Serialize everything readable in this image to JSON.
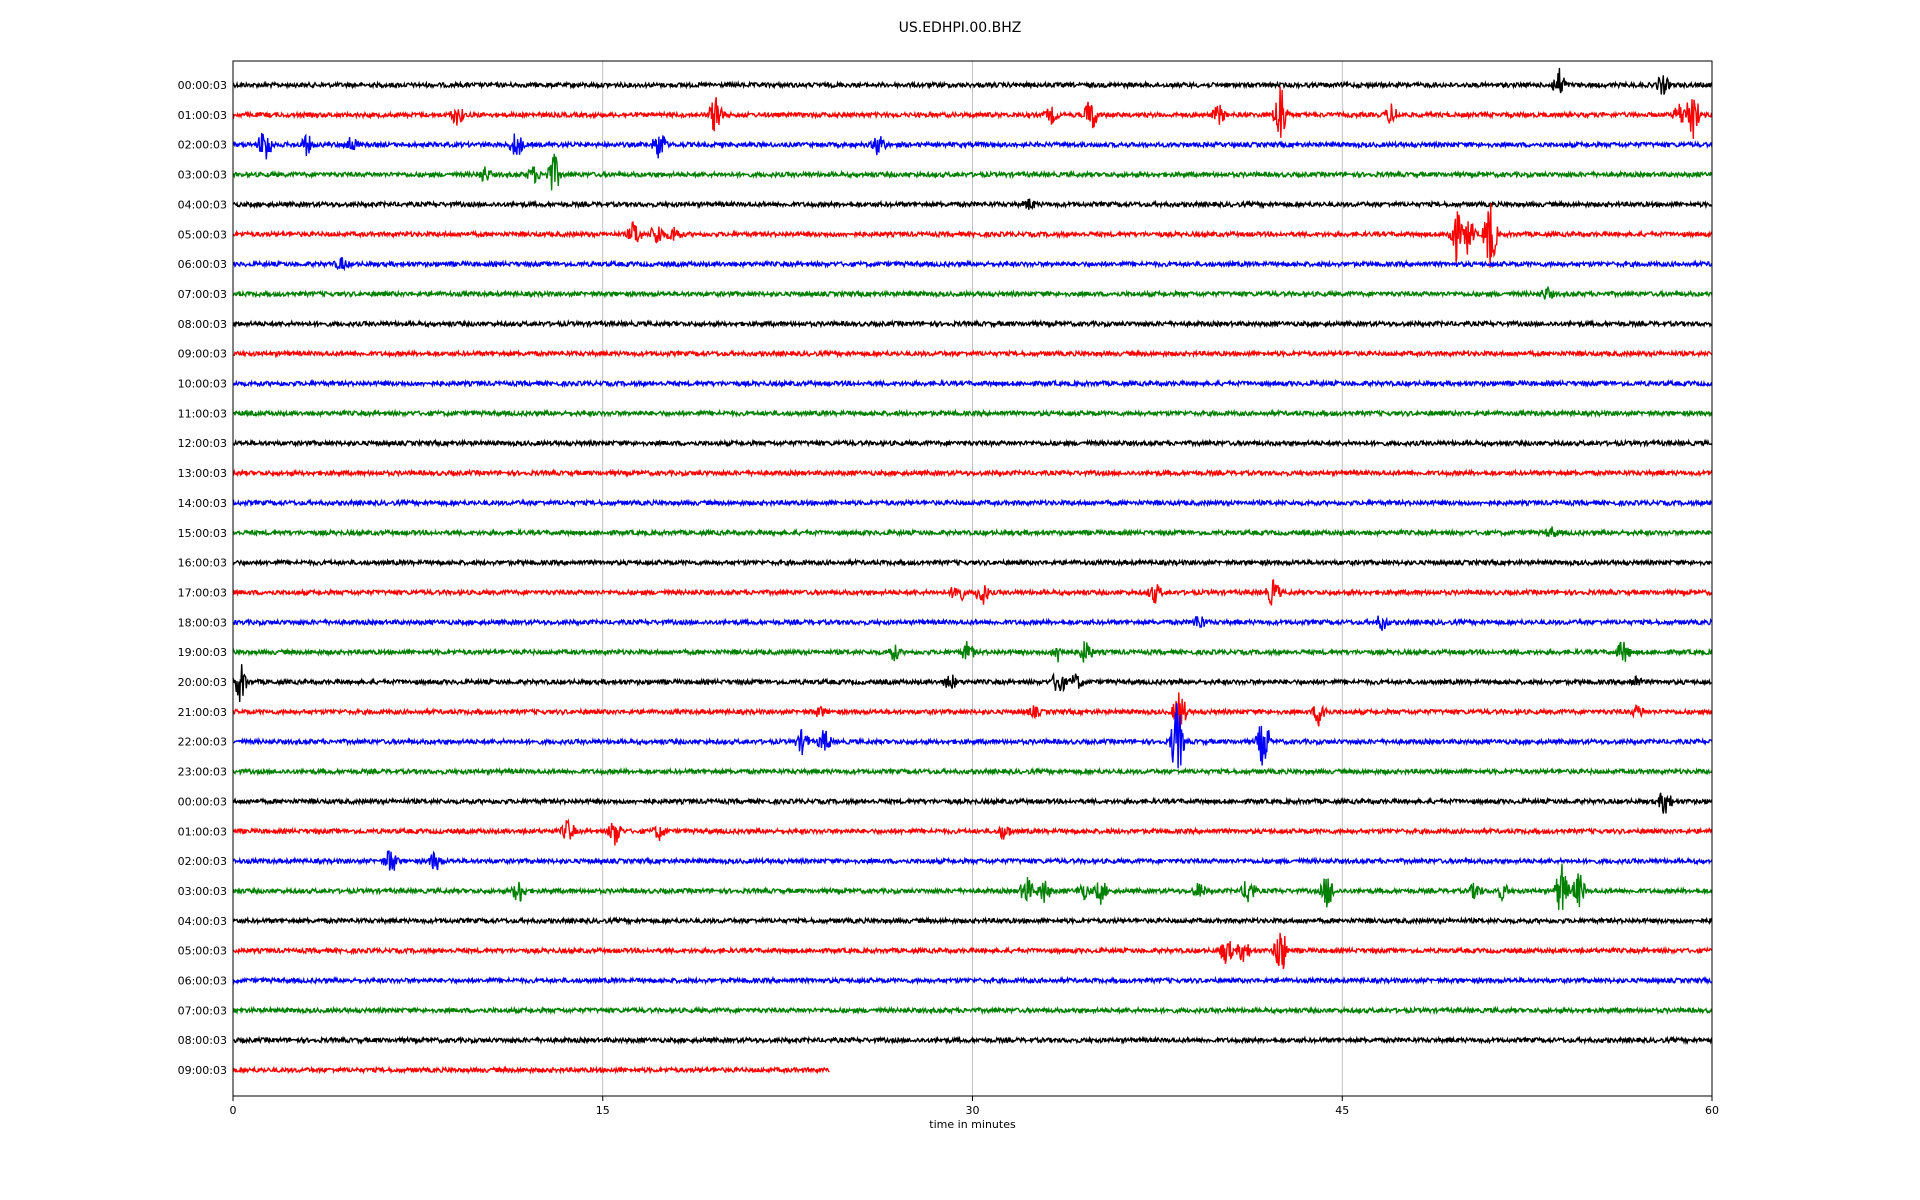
{
  "chart_data": {
    "type": "line",
    "title": "US.EDHPI.00.BHZ",
    "xlabel": "time in minutes",
    "ylabel": "",
    "xlim": [
      0,
      60
    ],
    "xticks": [
      0,
      15,
      30,
      45,
      60
    ],
    "grid": "vertical lines at x ticks",
    "color_cycle": [
      "#000000",
      "#ff0000",
      "#0000ff",
      "#008000"
    ],
    "series": [
      {
        "label": "00:00:03",
        "end_minute": 60,
        "events": [
          [
            53.8,
            16
          ],
          [
            58,
            10
          ]
        ]
      },
      {
        "label": "01:00:03",
        "end_minute": 60,
        "events": [
          [
            9.1,
            10
          ],
          [
            19.6,
            22
          ],
          [
            33.2,
            8
          ],
          [
            34.8,
            18
          ],
          [
            40,
            10
          ],
          [
            42.5,
            36
          ],
          [
            47,
            10
          ],
          [
            58.7,
            12
          ],
          [
            59.2,
            30
          ]
        ]
      },
      {
        "label": "02:00:03",
        "end_minute": 60,
        "events": [
          [
            1.3,
            20
          ],
          [
            3,
            10
          ],
          [
            4.8,
            8
          ],
          [
            11.5,
            14
          ],
          [
            17.3,
            16
          ],
          [
            26.2,
            12
          ]
        ]
      },
      {
        "label": "03:00:03",
        "end_minute": 60,
        "events": [
          [
            10.2,
            8
          ],
          [
            12.2,
            8
          ],
          [
            13,
            22
          ]
        ]
      },
      {
        "label": "04:00:03",
        "end_minute": 60,
        "events": [
          [
            32.3,
            5
          ]
        ]
      },
      {
        "label": "05:00:03",
        "end_minute": 60,
        "events": [
          [
            16.3,
            14
          ],
          [
            17.2,
            12
          ],
          [
            17.9,
            8
          ],
          [
            49.6,
            28
          ],
          [
            50.1,
            20
          ],
          [
            51,
            38
          ]
        ]
      },
      {
        "label": "06:00:03",
        "end_minute": 60,
        "events": [
          [
            4.4,
            6
          ]
        ]
      },
      {
        "label": "07:00:03",
        "end_minute": 60,
        "events": [
          [
            53.3,
            6
          ]
        ]
      },
      {
        "label": "08:00:03",
        "end_minute": 60,
        "events": []
      },
      {
        "label": "09:00:03",
        "end_minute": 60,
        "events": []
      },
      {
        "label": "10:00:03",
        "end_minute": 60,
        "events": []
      },
      {
        "label": "11:00:03",
        "end_minute": 60,
        "events": []
      },
      {
        "label": "12:00:03",
        "end_minute": 60,
        "events": []
      },
      {
        "label": "13:00:03",
        "end_minute": 60,
        "events": []
      },
      {
        "label": "14:00:03",
        "end_minute": 60,
        "events": []
      },
      {
        "label": "15:00:03",
        "end_minute": 60,
        "events": [
          [
            53.5,
            5
          ]
        ]
      },
      {
        "label": "16:00:03",
        "end_minute": 60,
        "events": []
      },
      {
        "label": "17:00:03",
        "end_minute": 60,
        "events": [
          [
            29.4,
            12
          ],
          [
            30.4,
            12
          ],
          [
            37.4,
            10
          ],
          [
            42.2,
            14
          ]
        ]
      },
      {
        "label": "18:00:03",
        "end_minute": 60,
        "events": [
          [
            39.2,
            8
          ],
          [
            46.6,
            8
          ]
        ]
      },
      {
        "label": "19:00:03",
        "end_minute": 60,
        "events": [
          [
            26.8,
            8
          ],
          [
            29.8,
            10
          ],
          [
            33.5,
            10
          ],
          [
            34.6,
            12
          ],
          [
            56.4,
            12
          ]
        ]
      },
      {
        "label": "20:00:03",
        "end_minute": 60,
        "events": [
          [
            0.3,
            20
          ],
          [
            29.1,
            8
          ],
          [
            33.5,
            14
          ],
          [
            34.2,
            8
          ],
          [
            56.9,
            6
          ]
        ]
      },
      {
        "label": "21:00:03",
        "end_minute": 60,
        "events": [
          [
            23.8,
            5
          ],
          [
            32.5,
            5
          ],
          [
            38.4,
            22
          ],
          [
            44.1,
            16
          ],
          [
            57,
            6
          ]
        ]
      },
      {
        "label": "22:00:03",
        "end_minute": 60,
        "events": [
          [
            23.1,
            12
          ],
          [
            24,
            12
          ],
          [
            38.3,
            40
          ],
          [
            41.8,
            26
          ]
        ]
      },
      {
        "label": "23:00:03",
        "end_minute": 60,
        "events": []
      },
      {
        "label": "00:00:03",
        "end_minute": 60,
        "events": [
          [
            58.1,
            14
          ]
        ]
      },
      {
        "label": "01:00:03",
        "end_minute": 60,
        "events": [
          [
            13.6,
            12
          ],
          [
            15.5,
            14
          ],
          [
            17.3,
            8
          ],
          [
            31.3,
            8
          ]
        ]
      },
      {
        "label": "02:00:03",
        "end_minute": 60,
        "events": [
          [
            6.4,
            14
          ],
          [
            8.2,
            10
          ]
        ]
      },
      {
        "label": "03:00:03",
        "end_minute": 60,
        "events": [
          [
            11.6,
            12
          ],
          [
            32.2,
            14
          ],
          [
            32.9,
            12
          ],
          [
            34.5,
            8
          ],
          [
            35.2,
            12
          ],
          [
            39.2,
            8
          ],
          [
            41.2,
            14
          ],
          [
            44.4,
            18
          ],
          [
            50.4,
            8
          ],
          [
            51.5,
            8
          ],
          [
            53.9,
            28
          ],
          [
            54.6,
            18
          ]
        ]
      },
      {
        "label": "04:00:03",
        "end_minute": 60,
        "events": []
      },
      {
        "label": "05:00:03",
        "end_minute": 60,
        "events": [
          [
            40.3,
            14
          ],
          [
            41,
            12
          ],
          [
            42.5,
            26
          ]
        ]
      },
      {
        "label": "06:00:03",
        "end_minute": 60,
        "events": []
      },
      {
        "label": "07:00:03",
        "end_minute": 60,
        "events": []
      },
      {
        "label": "08:00:03",
        "end_minute": 60,
        "events": []
      },
      {
        "label": "09:00:03",
        "end_minute": 24.2,
        "events": []
      }
    ]
  }
}
